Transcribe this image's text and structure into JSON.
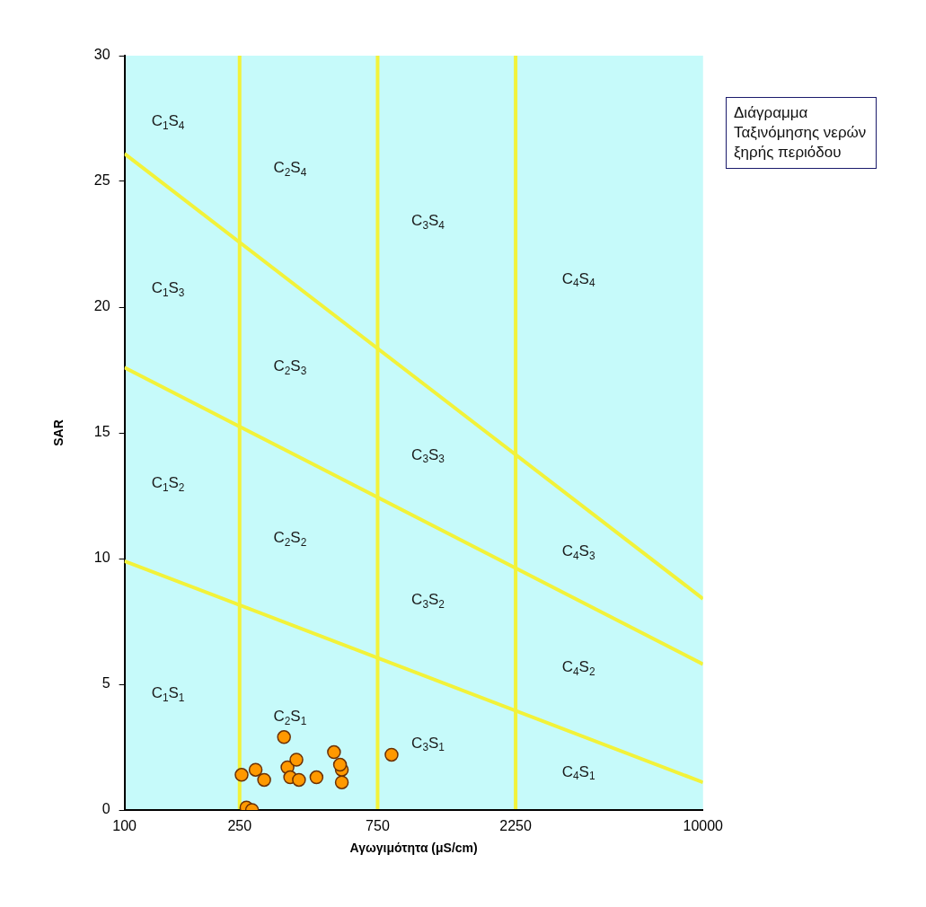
{
  "chart_data": {
    "type": "scatter",
    "title": "Διάγραμμα Ταξινόμησης νερών ξηρής περιόδου",
    "xlabel": "Αγωγιμότητα (μS/cm)",
    "ylabel": "SAR",
    "log": "x",
    "xlim": [
      100,
      10000
    ],
    "xticks": [
      100,
      250,
      750,
      2250,
      10000
    ],
    "ylim": [
      0,
      30
    ],
    "yticks": [
      0,
      5,
      10,
      15,
      20,
      25,
      30
    ],
    "grid": false,
    "legend": false,
    "marker": "circle",
    "series": [
      {
        "type": "line",
        "marker": "none",
        "color": "#f2f23a",
        "x": [
          100,
          10000
        ],
        "values": [
          26.1,
          8.4
        ]
      },
      {
        "type": "line",
        "marker": "none",
        "color": "#f2f23a",
        "x": [
          100,
          10000
        ],
        "values": [
          17.6,
          5.8
        ]
      },
      {
        "type": "line",
        "marker": "none",
        "color": "#f2f23a",
        "x": [
          100,
          10000
        ],
        "values": [
          9.9,
          1.1
        ]
      },
      {
        "color": "#ff9900",
        "x": [
          356,
          254,
          284,
          304,
          264,
          276,
          366,
          393,
          374,
          401,
          461,
          530,
          564,
          564,
          556,
          838
        ],
        "values": [
          2.9,
          1.4,
          1.6,
          1.2,
          0.1,
          0,
          1.7,
          2.0,
          1.3,
          1.2,
          1.3,
          2.3,
          1.6,
          1.1,
          1.8,
          2.2
        ]
      }
    ],
    "ref_lines": [
      {
        "axis": "x",
        "value": 250,
        "color": "#f2f23a"
      },
      {
        "axis": "x",
        "value": 750,
        "color": "#f2f23a"
      },
      {
        "axis": "x",
        "value": 2250,
        "color": "#f2f23a"
      }
    ],
    "annotations": [
      "C$_{1}$S$_{4}$",
      "C$_{1}$S$_{3}$",
      "C$_{1}$S$_{2}$",
      "C$_{1}$S$_{1}$",
      "C$_{2}$S$_{4}$",
      "C$_{2}$S$_{3}$",
      "C$_{2}$S$_{2}$",
      "C$_{2}$S$_{1}$",
      "C$_{3}$S$_{4}$",
      "C$_{3}$S$_{3}$",
      "C$_{3}$S$_{2}$",
      "C$_{3}$S$_{1}$",
      "C$_{4}$S$_{4}$",
      "C$_{4}$S$_{3}$",
      "C$_{4}$S$_{2}$",
      "C$_{4}$S$_{1}$"
    ]
  }
}
